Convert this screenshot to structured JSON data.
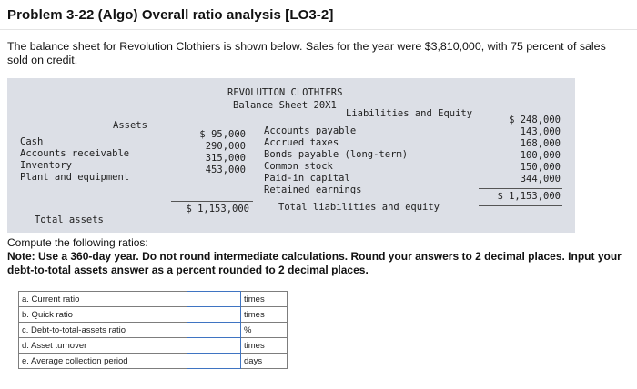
{
  "header": {
    "title": "Problem 3-22 (Algo) Overall ratio analysis [LO3-2]"
  },
  "intro": "The balance sheet for Revolution Clothiers is shown below. Sales for the year were $3,810,000, with 75 percent of sales sold on credit.",
  "balance_sheet": {
    "company": "REVOLUTION CLOTHIERS",
    "subtitle": "Balance Sheet 20X1",
    "assets_header": "Assets",
    "liabilities_header": "Liabilities and Equity",
    "assets": [
      {
        "label": "Cash",
        "value": "$ 95,000"
      },
      {
        "label": "Accounts receivable",
        "value": "290,000"
      },
      {
        "label": "Inventory",
        "value": "315,000"
      },
      {
        "label": "Plant and equipment",
        "value": "453,000"
      }
    ],
    "total_assets_label": "Total assets",
    "total_assets_value": "$ 1,153,000",
    "liabilities": [
      {
        "label": "Accounts payable",
        "value": "$ 248,000"
      },
      {
        "label": "Accrued taxes",
        "value": "143,000"
      },
      {
        "label": "Bonds payable (long-term)",
        "value": "168,000"
      },
      {
        "label": "Common stock",
        "value": "100,000"
      },
      {
        "label": "Paid-in capital",
        "value": "150,000"
      },
      {
        "label": "Retained earnings",
        "value": "344,000"
      }
    ],
    "total_liabilities_label": "Total liabilities and equity",
    "total_liabilities_value": "$ 1,153,000"
  },
  "instructions": {
    "lead": "Compute the following ratios:",
    "note": "Note: Use a 360-day year. Do not round intermediate calculations. Round your answers to 2 decimal places. Input your debt-to-total assets answer as a percent rounded to 2 decimal places."
  },
  "ratios": [
    {
      "label": "a. Current ratio",
      "value": "",
      "unit": "times"
    },
    {
      "label": "b. Quick ratio",
      "value": "",
      "unit": "times"
    },
    {
      "label": "c. Debt-to-total-assets ratio",
      "value": "",
      "unit": "%"
    },
    {
      "label": "d. Asset turnover",
      "value": "",
      "unit": "times"
    },
    {
      "label": "e. Average collection period",
      "value": "",
      "unit": "days"
    }
  ]
}
